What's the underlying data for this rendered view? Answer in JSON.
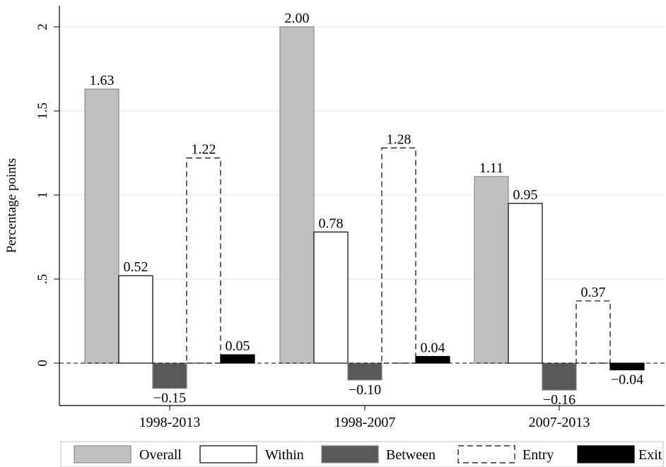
{
  "chart_data": {
    "type": "bar",
    "ylabel": "Percentage points",
    "ylim": [
      -0.25,
      2.1
    ],
    "yticks": [
      {
        "value": 0,
        "label": "0"
      },
      {
        "value": 0.5,
        "label": ".5"
      },
      {
        "value": 1,
        "label": "1"
      },
      {
        "value": 1.5,
        "label": "1.5"
      },
      {
        "value": 2,
        "label": "2"
      }
    ],
    "grid": true,
    "legend": "bottom",
    "categories": [
      "1998-2013",
      "1998-2007",
      "2007-2013"
    ],
    "series": [
      {
        "name": "Overall",
        "values": [
          1.63,
          2.0,
          1.11
        ],
        "labels": [
          "1.63",
          "2.00",
          "1.11"
        ],
        "fill": "#bfbfbf",
        "stroke": "#8c8c8c",
        "dash": false
      },
      {
        "name": "Within",
        "values": [
          0.52,
          0.78,
          0.95
        ],
        "labels": [
          "0.52",
          "0.78",
          "0.95"
        ],
        "fill": "#ffffff",
        "stroke": "#000000",
        "dash": false
      },
      {
        "name": "Between",
        "values": [
          -0.15,
          -0.1,
          -0.16
        ],
        "labels": [
          "-0.15",
          "-0.10",
          "-0.16"
        ],
        "fill": "#595959",
        "stroke": "#808080",
        "dash": false
      },
      {
        "name": "Entry",
        "values": [
          1.22,
          1.28,
          0.37
        ],
        "labels": [
          "1.22",
          "1.28",
          "0.37"
        ],
        "fill": "none",
        "stroke": "#000000",
        "dash": true
      },
      {
        "name": "Exit",
        "values": [
          0.05,
          0.04,
          -0.04
        ],
        "labels": [
          "0.05",
          "0.04",
          "-0.04"
        ],
        "fill": "#000000",
        "stroke": "#000000",
        "dash": false
      }
    ]
  }
}
